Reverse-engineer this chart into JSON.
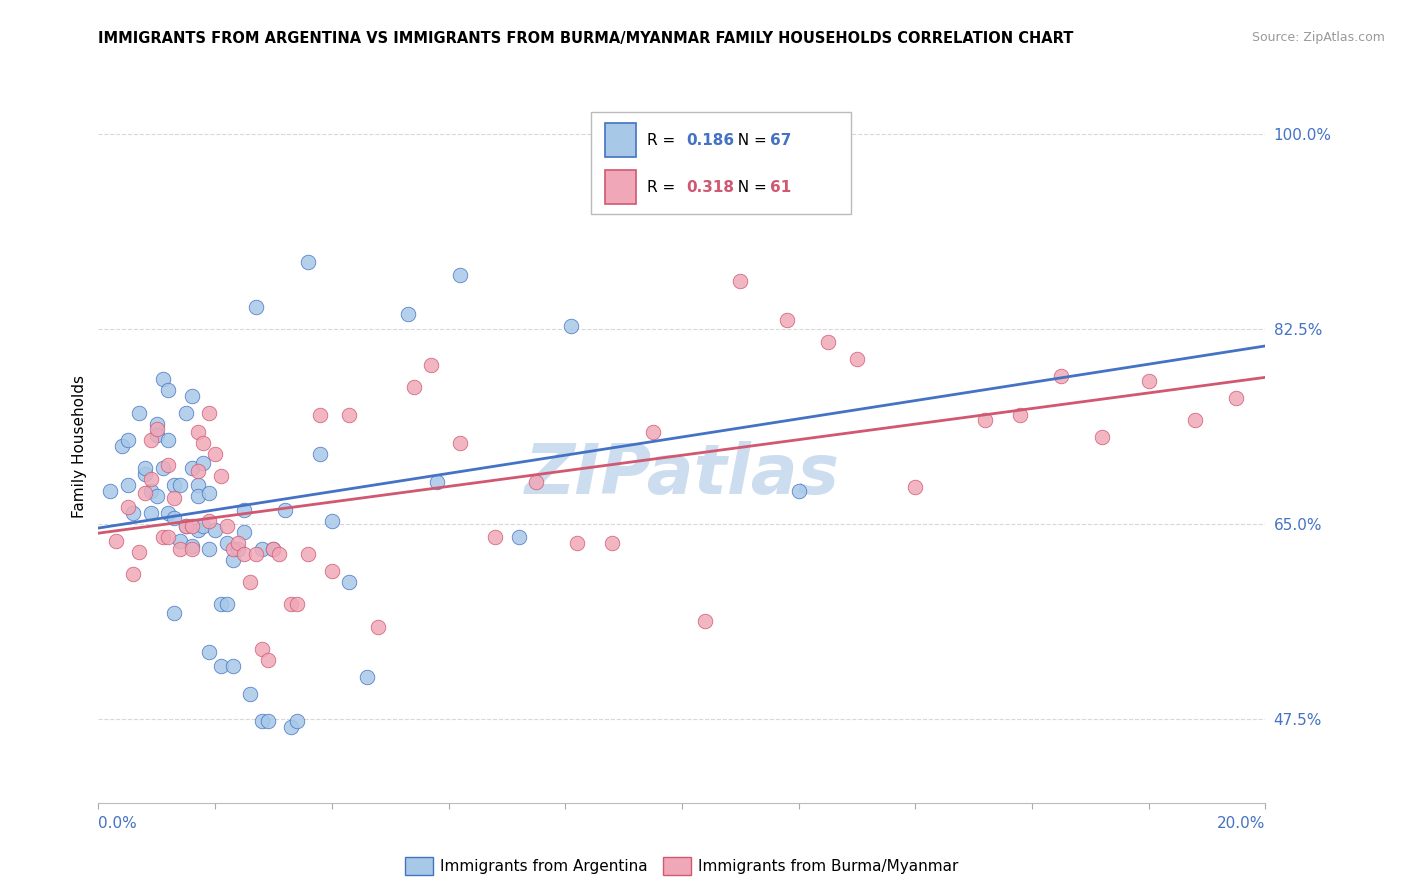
{
  "title": "IMMIGRANTS FROM ARGENTINA VS IMMIGRANTS FROM BURMA/MYANMAR FAMILY HOUSEHOLDS CORRELATION CHART",
  "source": "Source: ZipAtlas.com",
  "ylabel": "Family Households",
  "y_tick_labels": [
    "47.5%",
    "65.0%",
    "82.5%",
    "100.0%"
  ],
  "y_tick_values": [
    0.475,
    0.65,
    0.825,
    1.0
  ],
  "xlim": [
    0.0,
    0.2
  ],
  "ylim": [
    0.4,
    1.04
  ],
  "legend_R1": "0.186",
  "legend_N1": "67",
  "legend_R2": "0.318",
  "legend_N2": "61",
  "color_argentina": "#a8c8e8",
  "color_burma": "#f0a8b8",
  "color_line_argentina": "#4472c4",
  "color_line_burma": "#d05870",
  "color_text_blue": "#4472c4",
  "color_text_pink": "#d05870",
  "watermark": "ZIPatlas",
  "watermark_color": "#ccddf0",
  "argentina_x": [
    0.002,
    0.004,
    0.005,
    0.005,
    0.006,
    0.007,
    0.008,
    0.008,
    0.009,
    0.009,
    0.01,
    0.01,
    0.01,
    0.011,
    0.011,
    0.012,
    0.012,
    0.012,
    0.013,
    0.013,
    0.013,
    0.014,
    0.014,
    0.015,
    0.015,
    0.016,
    0.016,
    0.016,
    0.017,
    0.017,
    0.017,
    0.018,
    0.018,
    0.019,
    0.019,
    0.019,
    0.02,
    0.021,
    0.021,
    0.022,
    0.022,
    0.023,
    0.023,
    0.024,
    0.025,
    0.025,
    0.026,
    0.027,
    0.028,
    0.028,
    0.029,
    0.03,
    0.032,
    0.033,
    0.034,
    0.036,
    0.038,
    0.04,
    0.043,
    0.046,
    0.053,
    0.058,
    0.062,
    0.072,
    0.081,
    0.096,
    0.12
  ],
  "argentina_y": [
    0.68,
    0.72,
    0.685,
    0.725,
    0.66,
    0.75,
    0.695,
    0.7,
    0.68,
    0.66,
    0.74,
    0.73,
    0.675,
    0.78,
    0.7,
    0.725,
    0.66,
    0.77,
    0.57,
    0.655,
    0.685,
    0.635,
    0.685,
    0.75,
    0.648,
    0.7,
    0.765,
    0.63,
    0.685,
    0.645,
    0.675,
    0.705,
    0.648,
    0.628,
    0.678,
    0.535,
    0.645,
    0.523,
    0.578,
    0.633,
    0.578,
    0.618,
    0.523,
    0.628,
    0.663,
    0.643,
    0.498,
    0.845,
    0.628,
    0.473,
    0.473,
    0.628,
    0.663,
    0.468,
    0.473,
    0.885,
    0.713,
    0.653,
    0.598,
    0.513,
    0.838,
    0.688,
    0.873,
    0.638,
    0.828,
    0.935,
    0.68
  ],
  "burma_x": [
    0.003,
    0.005,
    0.006,
    0.007,
    0.008,
    0.009,
    0.009,
    0.01,
    0.011,
    0.012,
    0.012,
    0.013,
    0.014,
    0.015,
    0.016,
    0.016,
    0.017,
    0.017,
    0.018,
    0.019,
    0.019,
    0.02,
    0.021,
    0.022,
    0.023,
    0.024,
    0.025,
    0.026,
    0.027,
    0.028,
    0.029,
    0.03,
    0.031,
    0.033,
    0.034,
    0.036,
    0.038,
    0.04,
    0.043,
    0.048,
    0.054,
    0.057,
    0.062,
    0.068,
    0.075,
    0.082,
    0.088,
    0.095,
    0.104,
    0.11,
    0.118,
    0.125,
    0.13,
    0.14,
    0.152,
    0.158,
    0.165,
    0.172,
    0.18,
    0.188,
    0.195
  ],
  "burma_y": [
    0.635,
    0.665,
    0.605,
    0.625,
    0.678,
    0.69,
    0.725,
    0.735,
    0.638,
    0.638,
    0.703,
    0.673,
    0.628,
    0.648,
    0.628,
    0.648,
    0.733,
    0.698,
    0.723,
    0.75,
    0.653,
    0.713,
    0.693,
    0.648,
    0.628,
    0.633,
    0.623,
    0.598,
    0.623,
    0.538,
    0.528,
    0.628,
    0.623,
    0.578,
    0.578,
    0.623,
    0.748,
    0.608,
    0.748,
    0.558,
    0.773,
    0.793,
    0.723,
    0.638,
    0.688,
    0.633,
    0.633,
    0.733,
    0.563,
    0.868,
    0.833,
    0.813,
    0.798,
    0.683,
    0.743,
    0.748,
    0.783,
    0.728,
    0.778,
    0.743,
    0.763
  ]
}
